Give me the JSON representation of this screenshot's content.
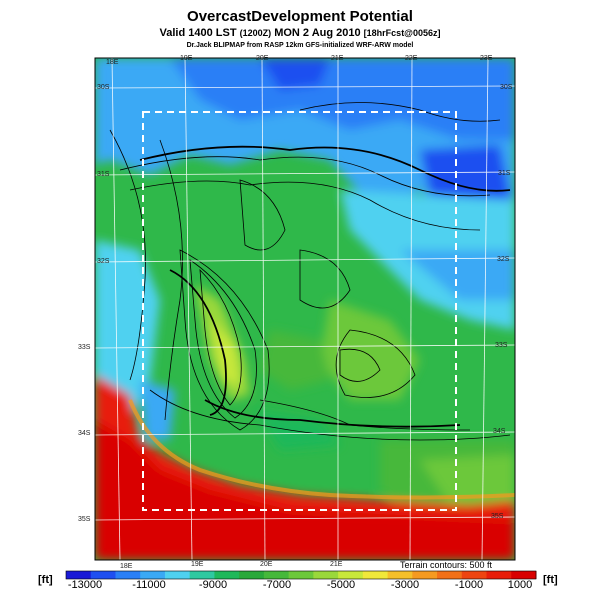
{
  "header": {
    "title": "OvercastDevelopment Potential",
    "subtitle_main": "Valid 1400 LST",
    "subtitle_utc": "(1200Z)",
    "subtitle_date": "MON 2 Aug 2010",
    "subtitle_fcst": "[18hrFcst@0056z]",
    "credit": "Dr.Jack BLIPMAP from RASP 12km GFS-initialized WRF-ARW model"
  },
  "map": {
    "lon_labels_top": [
      "18E",
      "19E",
      "20E",
      "21E",
      "22E",
      "23E"
    ],
    "lon_labels_bottom": [
      "18E",
      "19E",
      "20E",
      "21E"
    ],
    "lat_labels_left": [
      "30S",
      "31S",
      "32S",
      "33S",
      "34S",
      "35S"
    ],
    "lat_labels_right": [
      "30S",
      "31S",
      "32S",
      "33S",
      "34S",
      "35S"
    ],
    "terrain_note": "Terrain contours: 500 ft"
  },
  "colorbar": {
    "unit": "[ft]",
    "labels": [
      "-13000",
      "-11000",
      "-9000",
      "-7000",
      "-5000",
      "-3000",
      "-1000",
      "1000"
    ],
    "colors": [
      "#1a1ad6",
      "#1f4ff0",
      "#2a7ff6",
      "#3aa9f5",
      "#4fd1f0",
      "#2fc9a0",
      "#1fb85a",
      "#2aa83a",
      "#46b83a",
      "#6cc83a",
      "#9ad83a",
      "#c8e83a",
      "#f0e83a",
      "#f5c02a",
      "#f59a20",
      "#f27018",
      "#ee4410",
      "#e81e0a",
      "#d90000"
    ]
  }
}
